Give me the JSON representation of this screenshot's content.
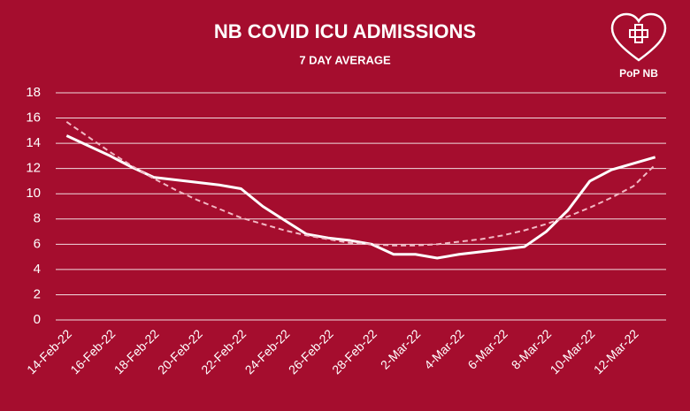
{
  "chart_data": {
    "type": "line",
    "title": "NB COVID ICU ADMISSIONS",
    "subtitle": "7 DAY AVERAGE",
    "logo": "PoP NB",
    "categories": [
      "14-Feb-22",
      null,
      "16-Feb-22",
      null,
      "18-Feb-22",
      null,
      "20-Feb-22",
      null,
      "22-Feb-22",
      null,
      "24-Feb-22",
      null,
      "26-Feb-22",
      null,
      "28-Feb-22",
      null,
      "2-Mar-22",
      null,
      "4-Mar-22",
      null,
      "6-Mar-22",
      null,
      "8-Mar-22",
      null,
      "10-Mar-22",
      null,
      "12-Mar-22",
      null
    ],
    "series": [
      {
        "color": "#ffffff",
        "dash": false,
        "values": [
          14.6,
          13.8,
          13.0,
          12.1,
          11.3,
          11.1,
          10.9,
          10.7,
          10.4,
          9.0,
          7.9,
          6.8,
          6.5,
          6.3,
          6.0,
          5.2,
          5.2,
          4.9,
          5.2,
          5.4,
          5.6,
          5.8,
          7.0,
          8.7,
          11.0,
          11.9,
          12.4,
          12.9
        ]
      },
      {
        "color": "#f2b8c4",
        "dash": true,
        "values": [
          15.7,
          14.5,
          13.3,
          12.2,
          11.2,
          10.3,
          9.5,
          8.8,
          8.1,
          7.6,
          7.1,
          6.7,
          6.4,
          6.1,
          6.0,
          5.9,
          5.9,
          6.0,
          6.2,
          6.4,
          6.7,
          7.1,
          7.6,
          8.2,
          8.9,
          9.7,
          10.6,
          12.3
        ]
      }
    ],
    "ylim": [
      0,
      18
    ],
    "yticks": [
      0,
      2,
      4,
      6,
      8,
      10,
      12,
      14,
      16,
      18
    ],
    "grid": true
  }
}
